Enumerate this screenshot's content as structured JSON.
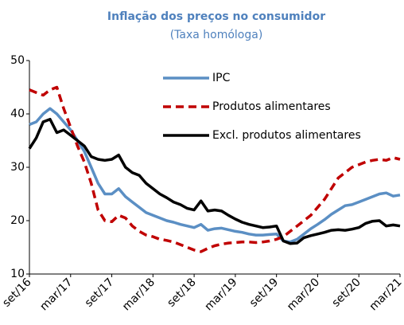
{
  "chart_data": {
    "type": "line",
    "title": "Inflação dos preços no consumidor",
    "subtitle": "(Taxa homóloga)",
    "categories": [
      "set/16",
      null,
      null,
      null,
      null,
      null,
      "mar/17",
      null,
      null,
      null,
      null,
      null,
      "set/17",
      null,
      null,
      null,
      null,
      null,
      "mar/18",
      null,
      null,
      null,
      null,
      null,
      "set/18",
      null,
      null,
      null,
      null,
      null,
      "mar/19",
      null,
      null,
      null,
      null,
      null,
      "set/19",
      null,
      null,
      null,
      null,
      null,
      "mar/20",
      null,
      null,
      null,
      null,
      null,
      "set/20",
      null,
      null,
      null,
      null,
      null,
      "mar/21"
    ],
    "series": [
      {
        "name": "IPC",
        "color": "#5b8fc4",
        "dash": false,
        "values": [
          38,
          38.5,
          40,
          41,
          40,
          38.5,
          37,
          35,
          33,
          30,
          27,
          25,
          25,
          26,
          24.5,
          23.5,
          22.5,
          21.5,
          21,
          20.5,
          20,
          19.7,
          19.3,
          19,
          18.7,
          19.3,
          18.2,
          18.5,
          18.6,
          18.3,
          18,
          17.8,
          17.5,
          17.3,
          17.3,
          17.4,
          17.5,
          16.2,
          16,
          16.5,
          17.5,
          18.5,
          19.3,
          20.2,
          21.2,
          22,
          22.8,
          23,
          23.5,
          24,
          24.5,
          25,
          25.2,
          24.6,
          24.8
        ]
      },
      {
        "name": "Produtos alimentares",
        "color": "#c00000",
        "dash": true,
        "values": [
          44.5,
          44,
          43.5,
          44.5,
          45,
          41,
          37.5,
          34,
          31,
          27,
          22,
          20,
          19.8,
          21,
          20.5,
          19,
          18,
          17.3,
          17,
          16.5,
          16.3,
          16,
          15.5,
          15,
          14.5,
          14.2,
          14.8,
          15.3,
          15.6,
          15.8,
          15.9,
          16,
          16,
          15.9,
          16,
          16.2,
          16.5,
          17,
          18,
          19,
          20,
          21,
          22.5,
          24,
          26,
          28,
          29,
          30,
          30.5,
          31,
          31.3,
          31.5,
          31.3,
          31.8,
          31.5
        ]
      },
      {
        "name": "Excl. produtos alimentares",
        "color": "#000000",
        "dash": false,
        "values": [
          33.5,
          35.5,
          38.5,
          39,
          36.5,
          37,
          36,
          35,
          34,
          32,
          31.5,
          31.3,
          31.5,
          32.3,
          30,
          29,
          28.5,
          27,
          26,
          25,
          24.3,
          23.5,
          23,
          22.3,
          22,
          23.7,
          21.8,
          22,
          21.8,
          21,
          20.3,
          19.7,
          19.3,
          19,
          18.7,
          18.8,
          19,
          16.2,
          15.7,
          15.8,
          16.8,
          17.2,
          17.5,
          17.8,
          18.2,
          18.3,
          18.2,
          18.4,
          18.7,
          19.5,
          19.9,
          20,
          19,
          19.2,
          19
        ]
      }
    ],
    "ylim": [
      10,
      50
    ],
    "yticks": [
      10,
      20,
      30,
      40,
      50
    ],
    "grid": false,
    "legend": "upper right"
  }
}
